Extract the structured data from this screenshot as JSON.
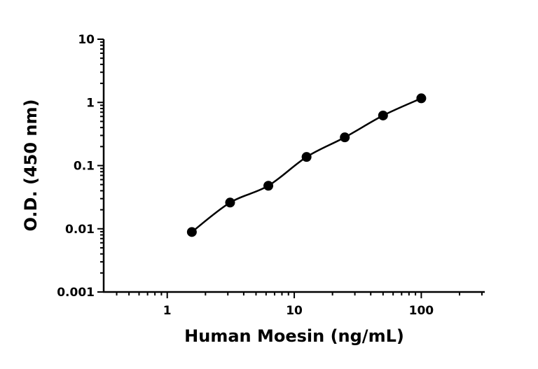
{
  "chart_data": {
    "type": "scatter",
    "log_x": true,
    "log_y": true,
    "x_label": "Human Moesin (ng/mL)",
    "y_label": "O.D. (450 nm)",
    "x": [
      1.5625,
      3.125,
      6.25,
      12.5,
      25,
      50,
      100
    ],
    "series": [
      {
        "color": "#000000",
        "values": [
          0.0089,
          0.026,
          0.048,
          0.137,
          0.28,
          0.62,
          1.16
        ]
      }
    ],
    "xlim": [
      0.316,
      316
    ],
    "ylim": [
      0.001,
      10
    ],
    "xticks": [
      1,
      10,
      100
    ],
    "yticks": [
      0.001,
      0.01,
      0.1,
      1,
      10
    ],
    "xminorticks": [
      0.4,
      0.5,
      0.6,
      0.7,
      0.8,
      0.9,
      2,
      3,
      4,
      5,
      6,
      7,
      8,
      9,
      20,
      30,
      40,
      50,
      60,
      70,
      80,
      90,
      200,
      300
    ],
    "yminorticks": [
      0.002,
      0.003,
      0.004,
      0.005,
      0.006,
      0.007,
      0.008,
      0.009,
      0.02,
      0.03,
      0.04,
      0.05,
      0.06,
      0.07,
      0.08,
      0.09,
      0.2,
      0.3,
      0.4,
      0.5,
      0.6,
      0.7,
      0.8,
      0.9,
      2,
      3,
      4,
      5,
      6,
      7,
      8,
      9
    ]
  }
}
